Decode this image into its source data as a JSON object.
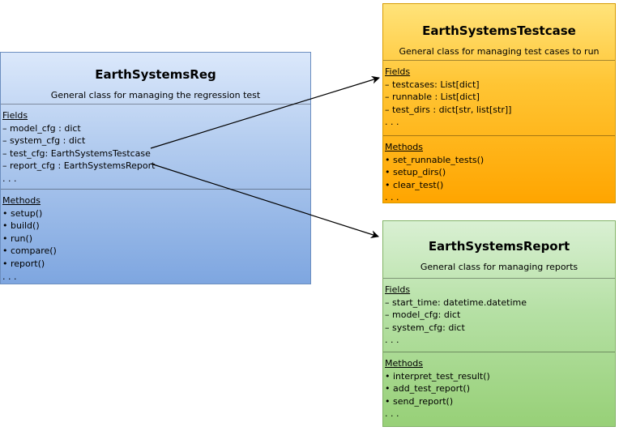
{
  "reg": {
    "title": "EarthSystemsReg",
    "subtitle": "General class for managing the regression test",
    "fields_label": "Fields",
    "fields": [
      "– model_cfg : dict",
      "– system_cfg : dict",
      "– test_cfg: EarthSystemsTestcase",
      "– report_cfg : EarthSystemsReport",
      ". . ."
    ],
    "methods_label": "Methods",
    "methods": [
      "• setup()",
      "• build()",
      "• run()",
      "• compare()",
      "• report()",
      ". . ."
    ]
  },
  "testcase": {
    "title": "EarthSystemsTestcase",
    "subtitle": "General class for managing test cases to run",
    "fields_label": "Fields",
    "fields": [
      "– testcases: List[dict]",
      "– runnable : List[dict]",
      "– test_dirs : dict[str, list[str]]",
      ". . ."
    ],
    "methods_label": "Methods",
    "methods": [
      "• set_runnable_tests()",
      "• setup_dirs()",
      "• clear_test()",
      ". . ."
    ]
  },
  "report": {
    "title": "EarthSystemsReport",
    "subtitle": "General class for managing reports",
    "fields_label": "Fields",
    "fields": [
      "– start_time: datetime.datetime",
      "– model_cfg: dict",
      "– system_cfg: dict",
      ". . ."
    ],
    "methods_label": "Methods",
    "methods": [
      "• interpret_test_result()",
      "• add_test_report()",
      "• send_report()",
      ". . ."
    ]
  },
  "colors": {
    "reg_fill": "#7ea6e0",
    "testcase_fill": "#ffa500",
    "report_fill": "#97d077",
    "arrow": "#000000"
  }
}
